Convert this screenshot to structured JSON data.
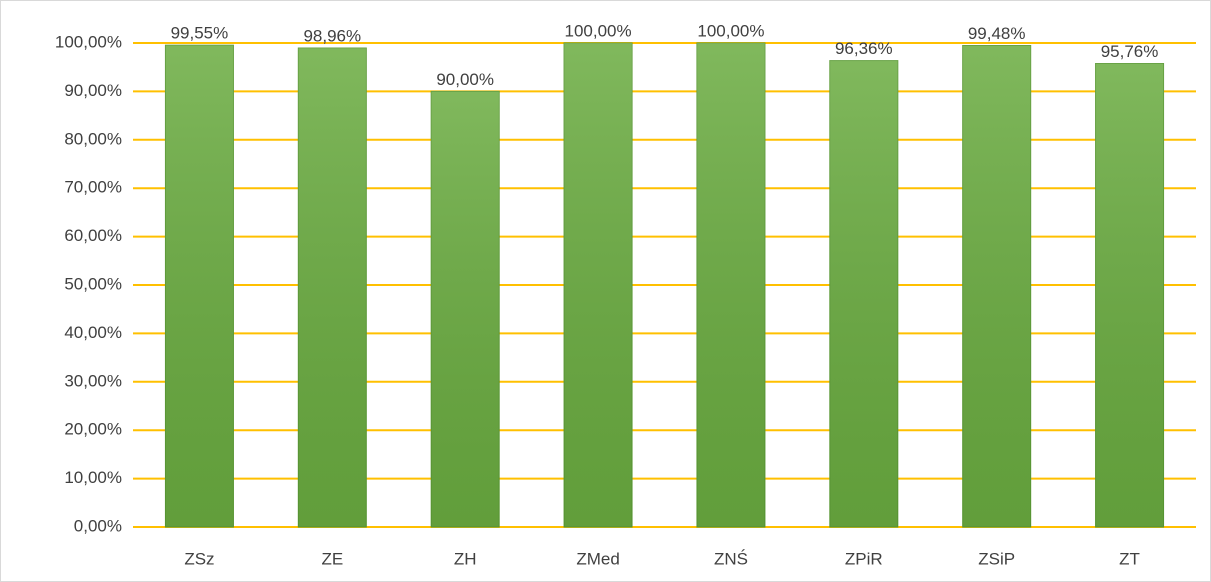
{
  "chart_data": {
    "type": "bar",
    "categories": [
      "ZSz",
      "ZE",
      "ZH",
      "ZMed",
      "ZNŚ",
      "ZPiR",
      "ZSiP",
      "ZT"
    ],
    "values": [
      99.55,
      98.96,
      90,
      100,
      100,
      96.36,
      99.48,
      95.76
    ],
    "value_labels": [
      "99,55%",
      "98,96%",
      "90,00%",
      "100,00%",
      "100,00%",
      "96,36%",
      "99,48%",
      "95,76%"
    ],
    "color": "#6aac40",
    "grid": true,
    "grid_color": "#ffc000",
    "ylim": [
      0,
      100
    ],
    "yticks": [
      {
        "value": 0,
        "label": "0,00%"
      },
      {
        "value": 10,
        "label": "10,00%"
      },
      {
        "value": 20,
        "label": "20,00%"
      },
      {
        "value": 30,
        "label": "30,00%"
      },
      {
        "value": 40,
        "label": "40,00%"
      },
      {
        "value": 50,
        "label": "50,00%"
      },
      {
        "value": 60,
        "label": "60,00%"
      },
      {
        "value": 70,
        "label": "70,00%"
      },
      {
        "value": 80,
        "label": "80,00%"
      },
      {
        "value": 90,
        "label": "90,00%"
      },
      {
        "value": 100,
        "label": "100,00%"
      }
    ]
  }
}
